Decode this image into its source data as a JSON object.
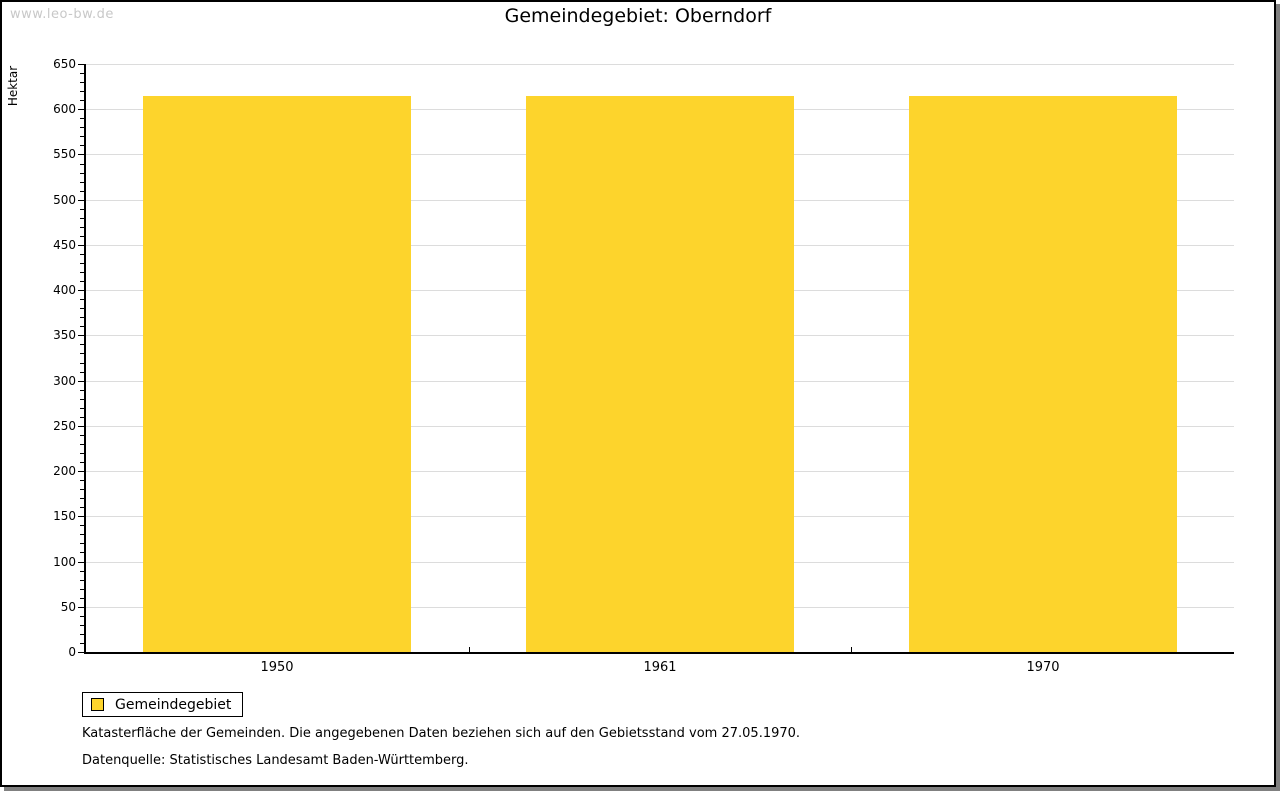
{
  "watermark": "www.leo-bw.de",
  "chart_data": {
    "type": "bar",
    "title": "Gemeindegebiet: Oberndorf",
    "ylabel": "Hektar",
    "xlabel": "",
    "categories": [
      "1950",
      "1961",
      "1970"
    ],
    "series": [
      {
        "name": "Gemeindegebiet",
        "values": [
          615,
          615,
          615
        ]
      }
    ],
    "ylim": [
      0,
      650
    ],
    "ytick_step": 50,
    "yminor_step": 10,
    "grid": true,
    "legend_position": "bottom-left",
    "colors": {
      "bar": "#FDD42C",
      "grid": "#DCDCDC",
      "axis": "#000000",
      "watermark": "#C8C8C8"
    }
  },
  "legend": {
    "items": [
      {
        "label": "Gemeindegebiet",
        "color": "#FDD42C"
      }
    ]
  },
  "footnotes": {
    "line1": "Katasterfläche der Gemeinden. Die angegebenen Daten beziehen sich auf den Gebietsstand vom 27.05.1970.",
    "line2": "Datenquelle: Statistisches Landesamt Baden-Württemberg."
  }
}
